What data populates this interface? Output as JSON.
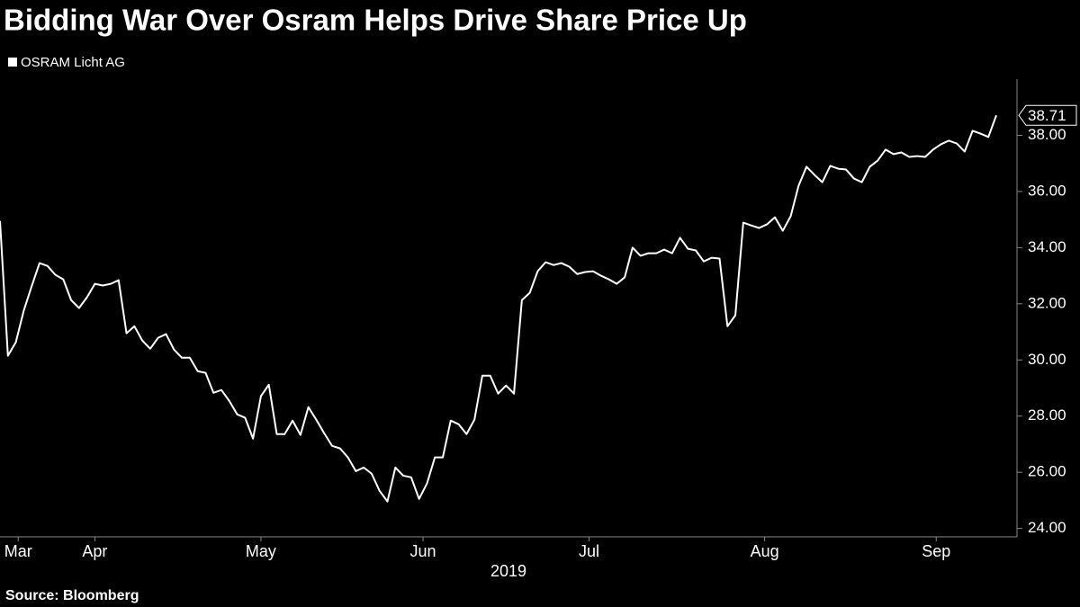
{
  "chart_data": {
    "type": "line",
    "title": "Bidding War Over Osram Helps Drive Share Price Up",
    "source": "Source: Bloomberg",
    "xlabel": "2019",
    "series": [
      {
        "name": "OSRAM Licht AG",
        "color": "#ffffff",
        "values": [
          34.95,
          30.15,
          30.63,
          31.75,
          32.62,
          33.45,
          33.35,
          33.03,
          32.87,
          32.13,
          31.85,
          32.23,
          32.71,
          32.65,
          32.71,
          32.84,
          30.95,
          31.2,
          30.69,
          30.4,
          30.79,
          30.92,
          30.37,
          30.08,
          30.08,
          29.6,
          29.54,
          28.83,
          28.93,
          28.54,
          28.06,
          27.94,
          27.2,
          28.71,
          29.12,
          27.36,
          27.36,
          27.84,
          27.33,
          28.32,
          27.87,
          27.39,
          26.94,
          26.85,
          26.53,
          26.04,
          26.17,
          25.95,
          25.34,
          24.96,
          26.17,
          25.88,
          25.82,
          25.05,
          25.6,
          26.53,
          26.53,
          27.84,
          27.71,
          27.36,
          27.87,
          29.44,
          29.44,
          28.8,
          29.09,
          28.8,
          32.13,
          32.39,
          33.16,
          33.48,
          33.38,
          33.45,
          33.32,
          33.06,
          33.13,
          33.16,
          33.0,
          32.87,
          32.71,
          32.94,
          34.0,
          33.71,
          33.8,
          33.8,
          33.93,
          33.8,
          34.35,
          33.96,
          33.9,
          33.51,
          33.64,
          33.61,
          31.2,
          31.59,
          34.89,
          34.79,
          34.7,
          34.83,
          35.08,
          34.6,
          35.12,
          36.21,
          36.88,
          36.59,
          36.33,
          36.91,
          36.81,
          36.78,
          36.46,
          36.33,
          36.88,
          37.1,
          37.49,
          37.33,
          37.39,
          37.23,
          37.26,
          37.23,
          37.49,
          37.68,
          37.81,
          37.71,
          37.42,
          38.16,
          38.06,
          37.94,
          38.71
        ]
      }
    ],
    "xticks": [
      {
        "value": 2.3,
        "label": "Mar"
      },
      {
        "value": 12,
        "label": "Apr"
      },
      {
        "value": 33,
        "label": "May"
      },
      {
        "value": 53.5,
        "label": "Jun"
      },
      {
        "value": 74.5,
        "label": "Jul"
      },
      {
        "value": 96.7,
        "label": "Aug"
      },
      {
        "value": 118.4,
        "label": "Sep"
      }
    ],
    "ylim": [
      23.7,
      40
    ],
    "yticks": [
      {
        "value": 24,
        "label": "24.00"
      },
      {
        "value": 26,
        "label": "26.00"
      },
      {
        "value": 28,
        "label": "28.00"
      },
      {
        "value": 30,
        "label": "30.00"
      },
      {
        "value": 32,
        "label": "32.00"
      },
      {
        "value": 34,
        "label": "34.00"
      },
      {
        "value": 36,
        "label": "36.00"
      },
      {
        "value": 38,
        "label": "38.00"
      }
    ]
  }
}
